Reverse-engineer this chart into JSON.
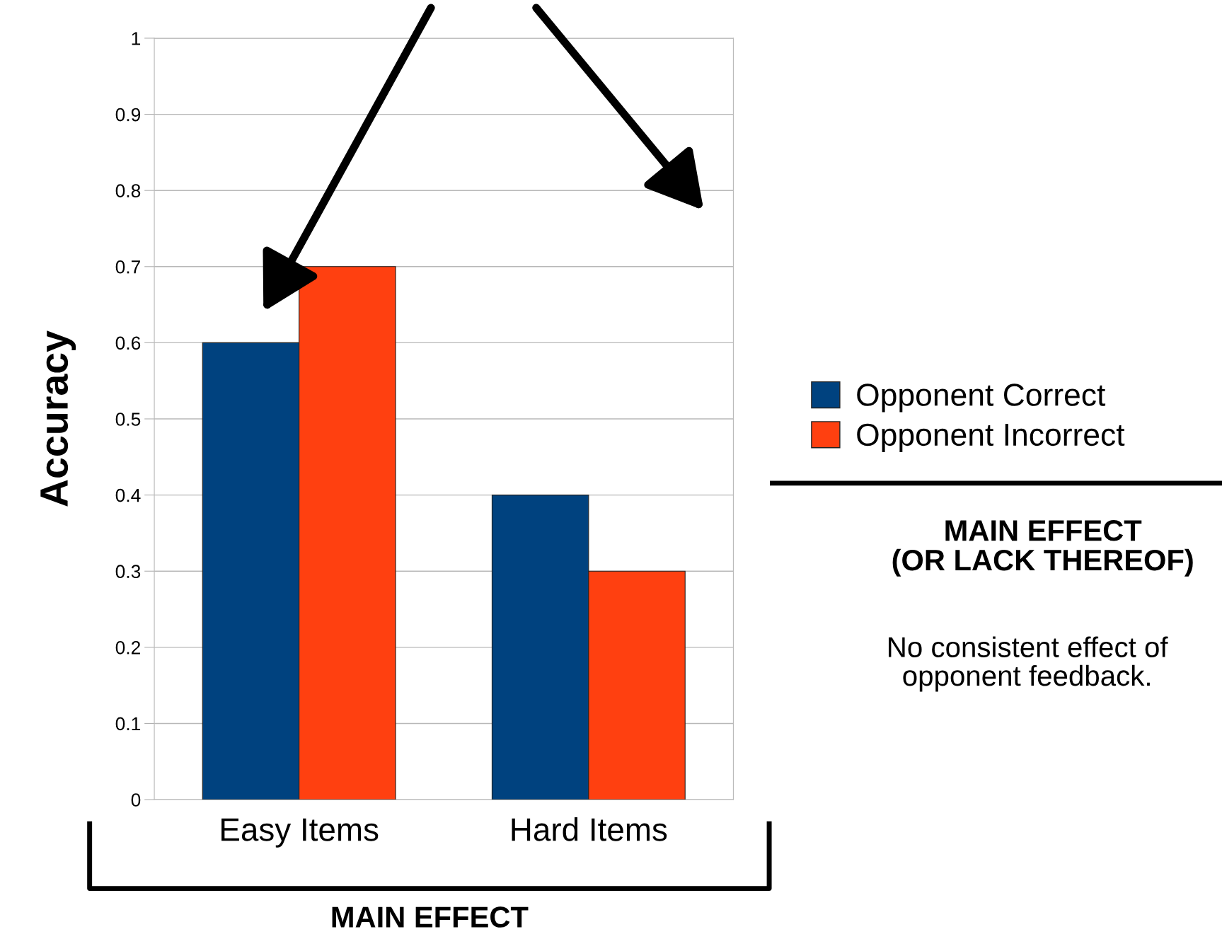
{
  "chart_data": {
    "type": "bar",
    "ylabel": "Accuracy",
    "categories": [
      "Easy Items",
      "Hard Items"
    ],
    "series": [
      {
        "name": "Opponent Correct",
        "color": "#00427f",
        "values": [
          0.6,
          0.4
        ]
      },
      {
        "name": "Opponent Incorrect",
        "color": "#ff4010",
        "values": [
          0.7,
          0.3
        ]
      }
    ],
    "ylim": [
      0,
      1
    ],
    "yticks": [
      0,
      0.1,
      0.2,
      0.3,
      0.4,
      0.5,
      0.6,
      0.7,
      0.8,
      0.9,
      1
    ],
    "grid": "y",
    "legend": "right",
    "annotations": [
      "MAIN EFFECT",
      "MAIN EFFECT\n(OR LACK THEREOF)",
      "No consistent effect of\nopponent feedback."
    ]
  }
}
